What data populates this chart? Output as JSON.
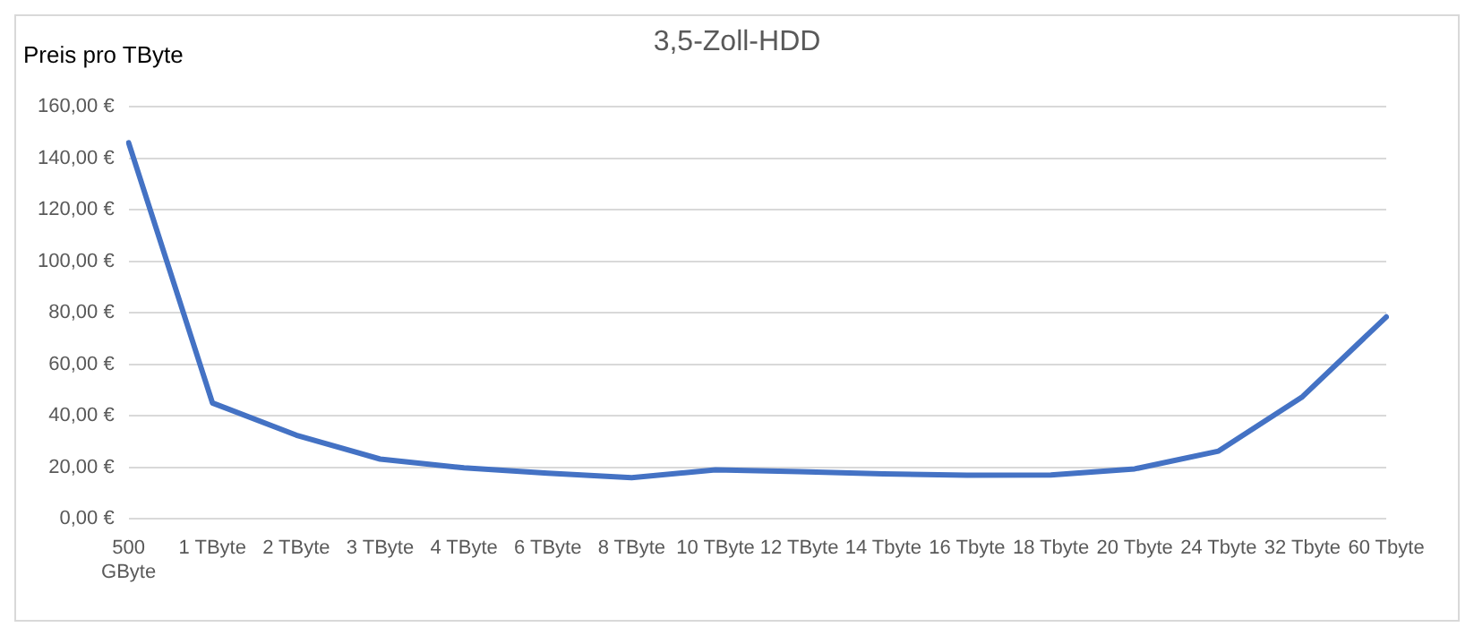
{
  "chart_data": {
    "type": "line",
    "title": "3,5-Zoll-HDD",
    "ylabel": "Preis pro TByte",
    "categories": [
      "500 GByte",
      "1 TByte",
      "2 TByte",
      "3 TByte",
      "4 TByte",
      "6 TByte",
      "8 TByte",
      "10 TByte",
      "12 TByte",
      "14 Tbyte",
      "16 Tbyte",
      "18 Tbyte",
      "20 Tbyte",
      "24 Tbyte",
      "32 Tbyte",
      "60 Tbyte"
    ],
    "series": [
      {
        "color": "#4472c4",
        "values": [
          146,
          45,
          32.5,
          23.2,
          19.8,
          17.7,
          16,
          19,
          18.3,
          17.5,
          16.9,
          17,
          19.4,
          26.3,
          47.4,
          78.4
        ]
      }
    ],
    "ylim": [
      0,
      160
    ],
    "yticks": [
      {
        "value": 0,
        "label": "0,00 €"
      },
      {
        "value": 20,
        "label": "20,00 €"
      },
      {
        "value": 40,
        "label": "40,00 €"
      },
      {
        "value": 60,
        "label": "60,00 €"
      },
      {
        "value": 80,
        "label": "80,00 €"
      },
      {
        "value": 100,
        "label": "100,00 €"
      },
      {
        "value": 120,
        "label": "120,00 €"
      },
      {
        "value": 140,
        "label": "140,00 €"
      },
      {
        "value": 160,
        "label": "160,00 €"
      }
    ],
    "grid": "y",
    "marker": "none",
    "line_style": "solid",
    "legend": false
  }
}
